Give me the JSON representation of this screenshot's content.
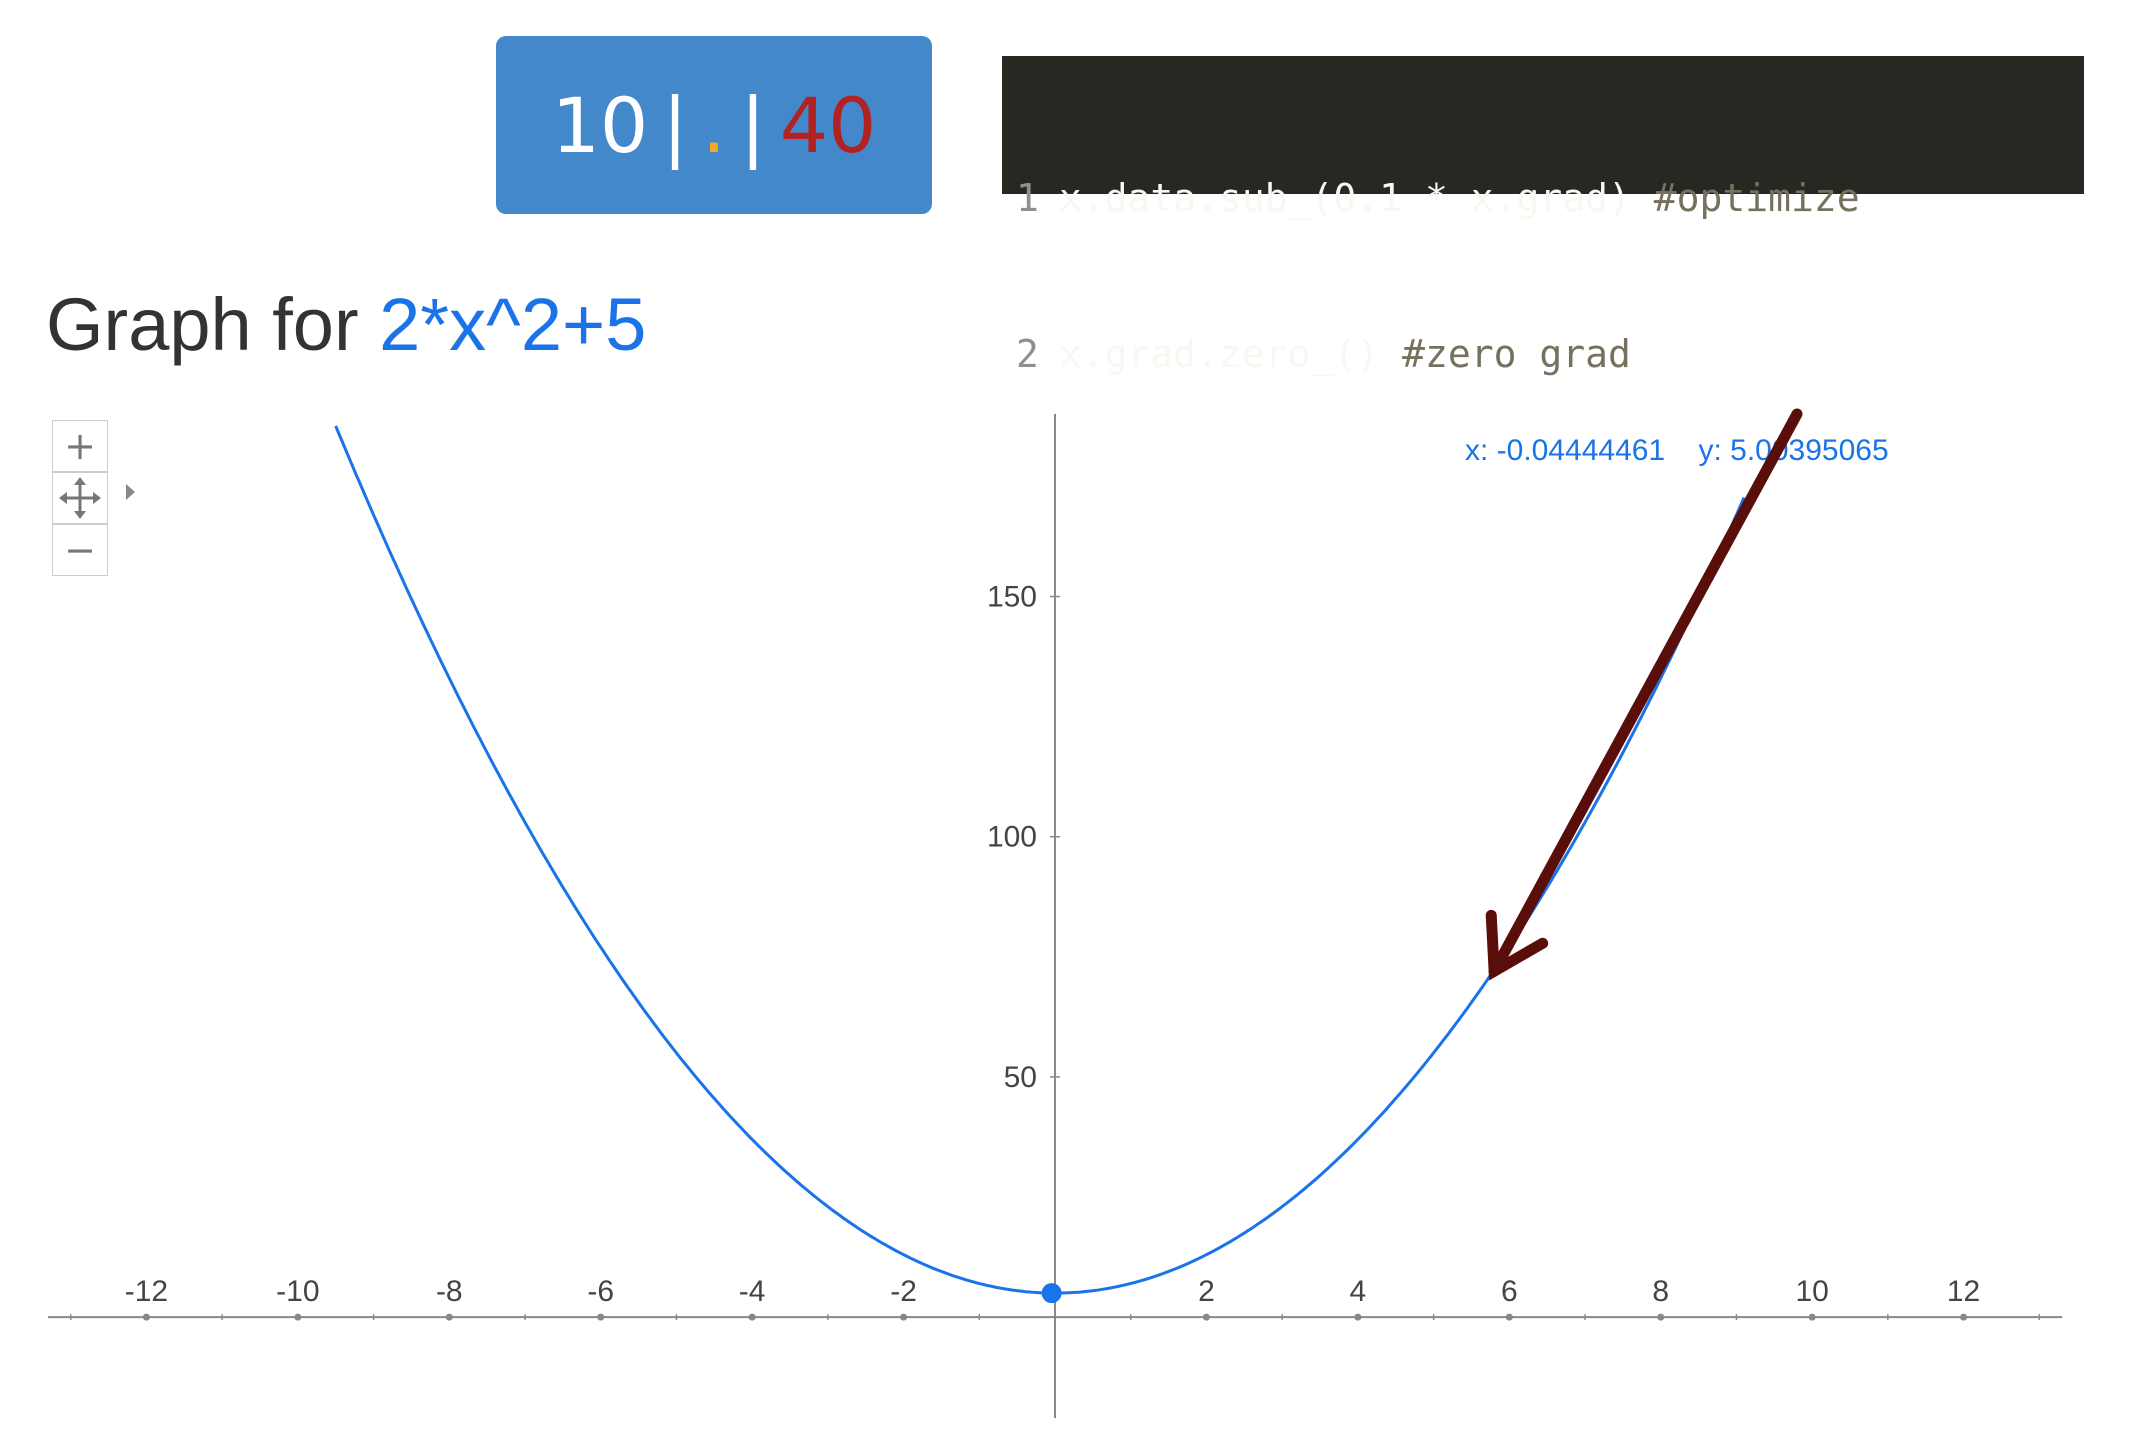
{
  "counter": {
    "current": "10",
    "separator": "|",
    "dot": ".",
    "total": "40",
    "colors": {
      "bg": "#4488cc",
      "dot": "#f5a623",
      "total": "#b22222"
    }
  },
  "code": {
    "lines": [
      {
        "num": "1",
        "code": "x.data.sub_(0.1 * x.grad)",
        "comment": "#optimize"
      },
      {
        "num": "2",
        "code": "x.grad.zero_()",
        "comment": "#zero grad"
      }
    ]
  },
  "graph": {
    "title_prefix": "Graph for ",
    "expression": "2*x^2+5",
    "coord_readout": "x: -0.04444461    y: 5.00395065",
    "zoom": {
      "zoom_in_icon": "plus-icon",
      "pan_icon": "move-arrows-icon",
      "zoom_out_icon": "minus-icon",
      "expand_icon": "triangle-right-icon"
    }
  },
  "chart_data": {
    "type": "line",
    "function": "2*x^2+5",
    "x": [
      -9.5,
      -9,
      -8,
      -7,
      -6,
      -5,
      -4,
      -3,
      -2,
      -1,
      0,
      1,
      2,
      3,
      4,
      5,
      6,
      7,
      8,
      9,
      9.1
    ],
    "y": [
      185.5,
      167,
      133,
      103,
      77,
      55,
      37,
      23,
      13,
      7,
      5,
      7,
      13,
      23,
      37,
      55,
      77,
      103,
      133,
      167,
      170.62
    ],
    "highlight_point": {
      "x": -0.04444461,
      "y": 5.00395065
    },
    "arrow_annotation": {
      "from": {
        "x": 9.8,
        "y": 188
      },
      "to": {
        "x": 5.8,
        "y": 72
      },
      "color": "#5a0e0a"
    },
    "x_ticks": [
      "-12",
      "-10",
      "-8",
      "-6",
      "-4",
      "-2",
      "2",
      "4",
      "6",
      "8",
      "10",
      "12"
    ],
    "x_tick_values": [
      -12,
      -10,
      -8,
      -6,
      -4,
      -2,
      2,
      4,
      6,
      8,
      10,
      12
    ],
    "y_ticks": [
      "50",
      "100",
      "150"
    ],
    "y_tick_values": [
      50,
      100,
      150
    ],
    "xlim": [
      -13.3,
      13.3
    ],
    "ylim": [
      -21,
      188
    ],
    "title": "",
    "xlabel": "",
    "ylabel": "",
    "grid": false,
    "colors": {
      "curve": "#1a73e8",
      "axis": "#888888",
      "tick_label": "#444444"
    }
  }
}
